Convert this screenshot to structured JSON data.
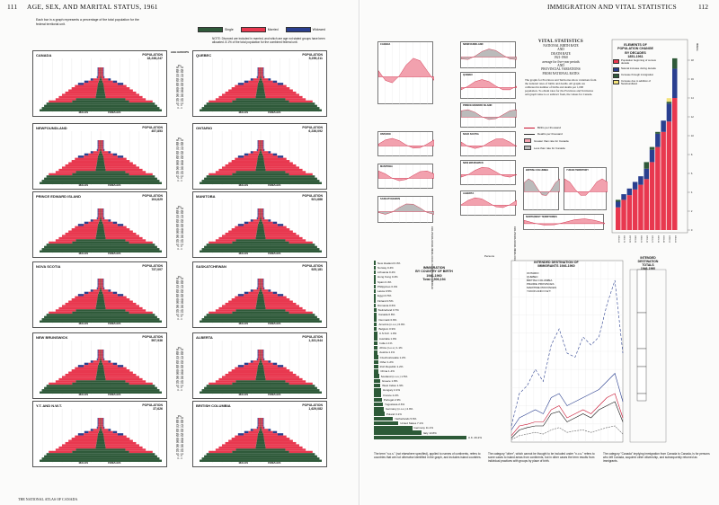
{
  "left_page": {
    "page_number": "111",
    "header": "AGE, SEX, AND MARITAL STATUS, 1961",
    "intro": "Each bar in a graph represents a percentage of the total population for the federal territorial unit.",
    "note": "NOTE: Divorced are included in married, and which are age not stated groups have been allocated. 8.1% of the total population for the combined federal unit.",
    "legend": [
      {
        "label": "Single",
        "color": "#2f5a3a"
      },
      {
        "label": "Married",
        "color": "#e8384f"
      },
      {
        "label": "Widowed",
        "color": "#2a3f8f"
      }
    ],
    "age_header": "AGE GROUPS",
    "age_groups": [
      "95+",
      "90 - 94",
      "85 - 89",
      "80 - 84",
      "75 - 79",
      "70 - 74",
      "65 - 69",
      "60 - 64",
      "55 - 59",
      "50 - 54",
      "45 - 49",
      "40 - 44",
      "35 - 39",
      "30 - 34",
      "25 - 29",
      "20 - 24",
      "15 - 19",
      "10 - 14",
      "5 - 9",
      "0 - 4"
    ],
    "male_label": "MALES",
    "female_label": "FEMALES",
    "pop_label": "POPULATION",
    "panels": [
      {
        "name": "CANADA",
        "population": "18,238,247"
      },
      {
        "name": "QUEBEC",
        "population": "5,259,211"
      },
      {
        "name": "NEWFOUNDLAND",
        "population": "457,853"
      },
      {
        "name": "ONTARIO",
        "population": "6,236,092"
      },
      {
        "name": "PRINCE EDWARD ISLAND",
        "population": "104,629"
      },
      {
        "name": "MANITOBA",
        "population": "921,686"
      },
      {
        "name": "NOVA SCOTIA",
        "population": "737,007"
      },
      {
        "name": "SASKATCHEWAN",
        "population": "925,181"
      },
      {
        "name": "NEW BRUNSWICK",
        "population": "597,936"
      },
      {
        "name": "ALBERTA",
        "population": "1,331,944"
      },
      {
        "name": "Y.T. AND N.W.T.",
        "population": "37,626"
      },
      {
        "name": "BRITISH COLUMBIA",
        "population": "1,629,082"
      }
    ],
    "mini_stats": [
      "Married",
      "Widowed",
      "Divorced",
      "Percentage of all"
    ],
    "footer": "THE NATIONAL ATLAS OF CANADA"
  },
  "right_page": {
    "page_number": "112",
    "header": "IMMIGRATION AND VITAL STATISTICS",
    "vital": {
      "heading": "VITAL STATISTICS",
      "sub": [
        "NATIONAL BIRTH RATE",
        "AND",
        "DEATH RATE",
        "1921-1960",
        "average for five-year periods",
        "AND",
        "PROVINCIAL VARIATIONS",
        "FROM NATIONAL RATES"
      ],
      "text": "The graphs for Provinces and Territories show variations from the national rates of births and deaths. All graphs are calibrated in number of births and deaths per 1,000 population. To obtain rates for the Provinces and Territories add graph value to or subtract from, the values for Canada.",
      "legend": [
        {
          "label": "Births per thousand",
          "kind": "line",
          "color": "#c8102e"
        },
        {
          "label": "Deaths per thousand",
          "kind": "line",
          "color": "#333333"
        },
        {
          "label": "Greater than rate for Canada",
          "kind": "box",
          "color": "#f2a1ae"
        },
        {
          "label": "Less than rate for Canada",
          "kind": "box",
          "color": "#bbbbbb"
        }
      ],
      "panels": [
        "CANADA",
        "NEWFOUNDLAND",
        "QUEBEC",
        "ONTARIO",
        "PRINCE EDWARD ISLAND",
        "MANITOBA",
        "NOVA SCOTIA",
        "SASKATCHEWAN",
        "NEW BRUNSWICK",
        "ALBERTA",
        "BRITISH COLUMBIA",
        "YUKON TERRITORY",
        "NORTHWEST TERRITORIES"
      ],
      "years": [
        "1921-25",
        "1926-30",
        "1931-35",
        "1936-40",
        "1941-45",
        "1946-50",
        "1951-55",
        "1956-60"
      ]
    },
    "elements": {
      "title": [
        "ELEMENTS OF",
        "POPULATION CHANGE",
        "BY DECADES",
        "1851-1961"
      ],
      "legend": [
        {
          "label": "Population beginning of census decade",
          "color": "#e8384f"
        },
        {
          "label": "Natural increase during decade",
          "color": "#2a3f8f"
        },
        {
          "label": "Increase through immigration",
          "color": "#2f5a3a"
        },
        {
          "label": "Increase due to addition of Newfoundland",
          "color": "#f3e27a"
        }
      ],
      "decades": [
        "1851-61",
        "1861-71",
        "1871-81",
        "1881-91",
        "1891-01",
        "1901-11",
        "1911-21",
        "1921-31",
        "1931-41",
        "1941-51",
        "1951-61"
      ],
      "axis_label": "Millions"
    },
    "immigration": {
      "title": [
        "IMMIGRATION",
        "BY COUNTRY OF BIRTH",
        "1946-1960",
        "Total 2,506,194"
      ],
      "persons_label": "Persons",
      "countries": [
        {
          "name": "New Zealand",
          "pct": "0.3%",
          "value": 0.3
        },
        {
          "name": "Norway",
          "pct": "0.4%",
          "value": 0.4
        },
        {
          "name": "Lithuania",
          "pct": "0.4%",
          "value": 0.4
        },
        {
          "name": "Hong Kong",
          "pct": "0.4%",
          "value": 0.4
        },
        {
          "name": "Spain",
          "pct": "0.4%",
          "value": 0.4
        },
        {
          "name": "Philippines",
          "pct": "0.4%",
          "value": 0.4
        },
        {
          "name": "Latvia",
          "pct": "0.5%",
          "value": 0.5
        },
        {
          "name": "Egypt",
          "pct": "0.5%",
          "value": 0.5
        },
        {
          "name": "Finland",
          "pct": "0.5%",
          "value": 0.5
        },
        {
          "name": "Romania",
          "pct": "0.6%",
          "value": 0.6
        },
        {
          "name": "Switzerland",
          "pct": "0.7%",
          "value": 0.7
        },
        {
          "name": "Canada",
          "pct": "0.8%",
          "value": 0.8
        },
        {
          "name": "Denmark",
          "pct": "0.9%",
          "value": 0.9
        },
        {
          "name": "America (n.o.s.)",
          "pct": "0.9%",
          "value": 0.9
        },
        {
          "name": "Belgium",
          "pct": "0.9%",
          "value": 0.9
        },
        {
          "name": "U.S.S.R.",
          "pct": "1.0%",
          "value": 1.0
        },
        {
          "name": "Australia",
          "pct": "1.0%",
          "value": 1.0
        },
        {
          "name": "India",
          "pct": "1.1%",
          "value": 1.1
        },
        {
          "name": "Africa (n.o.s.)",
          "pct": "1.1%",
          "value": 1.1
        },
        {
          "name": "Austria",
          "pct": "1.1%",
          "value": 1.1
        },
        {
          "name": "Czechoslovakia",
          "pct": "1.2%",
          "value": 1.2
        },
        {
          "name": "Other",
          "pct": "1.2%",
          "value": 1.2
        },
        {
          "name": "Irish Republic",
          "pct": "1.2%",
          "value": 1.2
        },
        {
          "name": "China",
          "pct": "1.4%",
          "value": 1.4
        },
        {
          "name": "Scotland (n.o.s.)",
          "pct": "1.5%",
          "value": 1.5
        },
        {
          "name": "Greece",
          "pct": "1.8%",
          "value": 1.8
        },
        {
          "name": "West Indies",
          "pct": "1.9%",
          "value": 1.9
        },
        {
          "name": "Hungary",
          "pct": "2.1%",
          "value": 2.1
        },
        {
          "name": "France",
          "pct": "2.2%",
          "value": 2.2
        },
        {
          "name": "Portugal",
          "pct": "2.3%",
          "value": 2.3
        },
        {
          "name": "Yugoslavia",
          "pct": "2.6%",
          "value": 2.6
        },
        {
          "name": "Germany (n.o.s.)",
          "pct": "2.9%",
          "value": 2.9
        },
        {
          "name": "Poland",
          "pct": "3.1%",
          "value": 3.1
        },
        {
          "name": "Netherlands",
          "pct": "5.6%",
          "value": 5.6
        },
        {
          "name": "United States",
          "pct": "7.1%",
          "value": 7.1
        },
        {
          "name": "Germany",
          "pct": "11.1%",
          "value": 11.1
        },
        {
          "name": "Italy",
          "pct": "13.8%",
          "value": 13.8
        },
        {
          "name": "U.K.",
          "pct": "29.2%",
          "value": 29.2
        }
      ]
    },
    "destination": {
      "title": [
        "INTENDED DESTINATION OF",
        "IMMIGRANTS 1946-1960"
      ],
      "legend": [
        "ONTARIO",
        "QUEBEC",
        "BRITISH COLUMBIA",
        "PRAIRIE PROVINCES",
        "MARITIME PROVINCES",
        "YUKON AND N.W.T."
      ],
      "totals_title": [
        "INTENDED",
        "DESTINATION",
        "TOTALS",
        "1946-1960"
      ]
    },
    "text_blocks": [
      "The term \"n.o.s.\" (not elsewhere specified), applied to names of continents, refers to countries that are not otherwise identified in the graph, and includes island countries.",
      "The category \"other\", which cannot be thought to be included under \"n.o.s.\" refers to some cases to island areas from continents, but in other cases the term results from individual practices with groups by place of birth.",
      "The category \"Canada\" implying immigration from Canada to Canada, is for persons who left Canada, acquired other citizenship, and subsequently returned as immigrants."
    ]
  }
}
